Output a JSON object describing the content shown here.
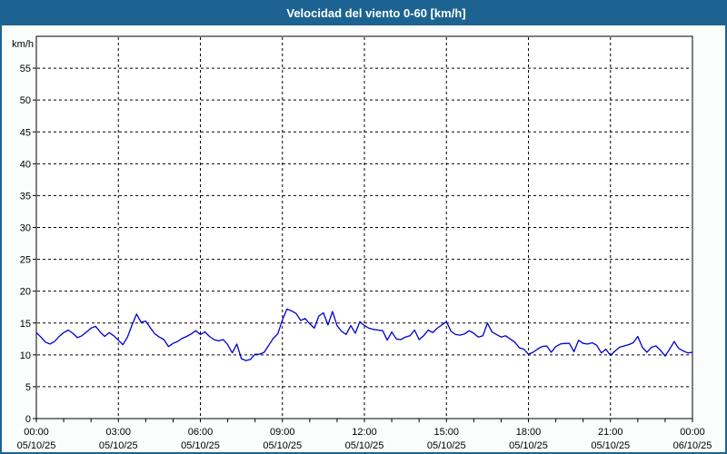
{
  "window": {
    "title": "Velocidad del viento 0-60 [km/h]"
  },
  "colors": {
    "titlebar": "#1C6391",
    "frame_border": "#1C6391",
    "background": "#FBFDFD",
    "plot_background": "#FFFFFF",
    "axis": "#000000",
    "grid": "#000000",
    "text": "#000000",
    "title_text": "#FFFFFF",
    "line": "#0000CC"
  },
  "chart_data": {
    "type": "line",
    "title": "Velocidad del viento 0-60 [km/h]",
    "xlabel": "",
    "ylabel": "km/h",
    "ylim": [
      0,
      60
    ],
    "y_tick_step": 5,
    "y_tick_labels": [
      "0",
      "5",
      "10",
      "15",
      "20",
      "25",
      "30",
      "35",
      "40",
      "45",
      "50",
      "55"
    ],
    "xlim_hours": [
      0,
      24
    ],
    "x_gridline_step_hours": 3,
    "x_minor_tick_step_hours": 1,
    "grid": "dashed",
    "legend": "none",
    "x_tick_times": [
      "00:00",
      "03:00",
      "06:00",
      "09:00",
      "12:00",
      "15:00",
      "18:00",
      "21:00",
      "00:00"
    ],
    "x_tick_dates": [
      "05/10/25",
      "05/10/25",
      "05/10/25",
      "05/10/25",
      "05/10/25",
      "05/10/25",
      "05/10/25",
      "05/10/25",
      "06/10/25"
    ],
    "series": [
      {
        "name": "Velocidad del viento",
        "color": "#0000CC",
        "x_start_hour": 0,
        "x_step_minutes": 10,
        "values": [
          13.5,
          12.8,
          12.0,
          11.7,
          12.1,
          12.9,
          13.5,
          13.9,
          13.4,
          12.7,
          13.0,
          13.6,
          14.2,
          14.5,
          13.6,
          12.9,
          13.5,
          13.0,
          12.3,
          11.6,
          12.8,
          14.7,
          16.4,
          15.1,
          15.3,
          14.3,
          13.3,
          12.8,
          12.4,
          11.3,
          11.8,
          12.1,
          12.6,
          12.9,
          13.3,
          13.8,
          13.2,
          13.6,
          12.9,
          12.4,
          12.2,
          12.4,
          11.6,
          10.3,
          11.7,
          9.4,
          9.1,
          9.3,
          10.1,
          10.1,
          10.4,
          11.5,
          12.6,
          13.3,
          15.5,
          17.2,
          16.9,
          16.5,
          15.4,
          15.7,
          14.9,
          14.2,
          16.1,
          16.6,
          14.7,
          16.8,
          14.6,
          13.7,
          13.2,
          14.6,
          13.4,
          15.2,
          14.6,
          14.2,
          14.0,
          13.9,
          13.8,
          12.3,
          13.6,
          12.5,
          12.4,
          12.8,
          13.0,
          13.9,
          12.4,
          13.0,
          13.9,
          13.5,
          14.2,
          14.7,
          15.2,
          13.7,
          13.2,
          13.1,
          13.3,
          13.8,
          13.4,
          12.8,
          13.0,
          15.0,
          13.6,
          13.2,
          12.8,
          13.0,
          12.5,
          12.0,
          11.1,
          10.9,
          10.1,
          10.4,
          10.9,
          11.3,
          11.4,
          10.4,
          11.3,
          11.7,
          11.8,
          11.8,
          10.5,
          12.3,
          11.8,
          11.7,
          11.9,
          11.5,
          10.3,
          10.9,
          9.9,
          10.6,
          11.2,
          11.4,
          11.6,
          11.9,
          12.9,
          11.2,
          10.4,
          11.2,
          11.4,
          10.7,
          9.8,
          10.9,
          12.1,
          11.0,
          10.6,
          10.3,
          10.4
        ]
      }
    ]
  }
}
